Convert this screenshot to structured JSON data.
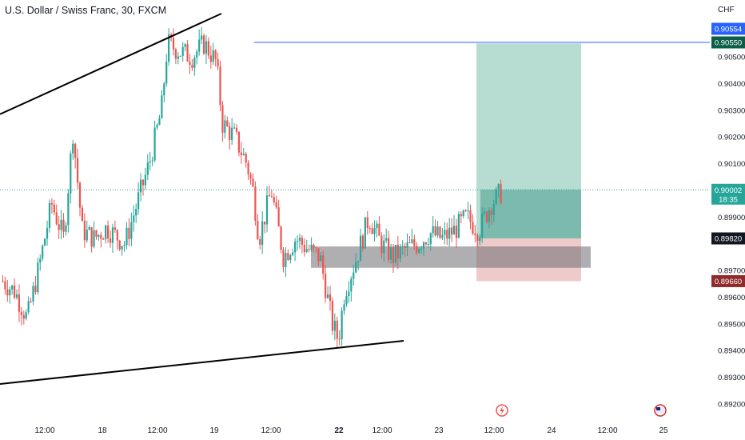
{
  "header": {
    "title": "U.S. Dollar / Swiss Franc, 30, FXCM",
    "currency": "CHF"
  },
  "chart_data": {
    "type": "candlestick",
    "symbol": "USDCHF",
    "timeframe": "30",
    "broker": "FXCM",
    "ylim": [
      0.8916,
      0.9065
    ],
    "y_ticks": [
      "0.90500",
      "0.90400",
      "0.90300",
      "0.90200",
      "0.90100",
      "0.89900",
      "0.89700",
      "0.89600",
      "0.89500",
      "0.89400",
      "0.89300",
      "0.89200"
    ],
    "x_ticks": [
      {
        "label": "12:00",
        "bold": false
      },
      {
        "label": "18",
        "bold": false
      },
      {
        "label": "12:00",
        "bold": false
      },
      {
        "label": "19",
        "bold": false
      },
      {
        "label": "12:00",
        "bold": false
      },
      {
        "label": "22",
        "bold": true
      },
      {
        "label": "12:00",
        "bold": false
      },
      {
        "label": "23",
        "bold": false
      },
      {
        "label": "12:00",
        "bold": false
      },
      {
        "label": "24",
        "bold": false
      },
      {
        "label": "12:00",
        "bold": false
      },
      {
        "label": "25",
        "bold": false
      }
    ],
    "price_badges": [
      {
        "value": "0.90554",
        "color": "#2962ff"
      },
      {
        "value": "0.90550",
        "color": "#0b5e47"
      },
      {
        "value": "0.90002",
        "sub": "18:35",
        "color": "#26a69a"
      },
      {
        "value": "0.89820",
        "color": "#131722"
      },
      {
        "value": "0.89660",
        "color": "#8e2a2a"
      }
    ],
    "current_price": 0.90002,
    "horizontal_line": 0.90554,
    "position": {
      "type": "long",
      "entry": 0.8982,
      "target": 0.9055,
      "stop": 0.8966
    },
    "support_zone": [
      0.8971,
      0.8979
    ],
    "trendlines": [
      {
        "from": [
          "start",
          0.90285
        ],
        "to": [
          "18 ~17:00",
          0.9064
        ]
      },
      {
        "from": [
          "start",
          0.89273
        ],
        "to": [
          "22 ~14:30",
          0.89435
        ]
      }
    ],
    "up_color": "#26a69a",
    "down_color": "#ef5350",
    "price_path": [
      [
        0,
        0.8966
      ],
      [
        0.02,
        0.8962
      ],
      [
        0.04,
        0.8952
      ],
      [
        0.06,
        0.8972
      ],
      [
        0.08,
        0.8995
      ],
      [
        0.1,
        0.8982
      ],
      [
        0.115,
        0.9022
      ],
      [
        0.13,
        0.8985
      ],
      [
        0.15,
        0.8982
      ],
      [
        0.17,
        0.8986
      ],
      [
        0.2,
        0.898
      ],
      [
        0.22,
        0.8995
      ],
      [
        0.24,
        0.901
      ],
      [
        0.26,
        0.903
      ],
      [
        0.27,
        0.9055
      ],
      [
        0.29,
        0.9052
      ],
      [
        0.31,
        0.905
      ],
      [
        0.33,
        0.9055
      ],
      [
        0.35,
        0.9048
      ],
      [
        0.36,
        0.9025
      ],
      [
        0.38,
        0.902
      ],
      [
        0.4,
        0.901
      ],
      [
        0.41,
        0.9
      ],
      [
        0.42,
        0.8982
      ],
      [
        0.44,
        0.9
      ],
      [
        0.46,
        0.8975
      ],
      [
        0.48,
        0.8982
      ],
      [
        0.5,
        0.8978
      ],
      [
        0.52,
        0.8975
      ],
      [
        0.54,
        0.895
      ],
      [
        0.55,
        0.8944
      ],
      [
        0.56,
        0.8962
      ],
      [
        0.58,
        0.8975
      ],
      [
        0.6,
        0.899
      ],
      [
        0.62,
        0.898
      ],
      [
        0.64,
        0.8975
      ],
      [
        0.66,
        0.8978
      ],
      [
        0.68,
        0.898
      ],
      [
        0.7,
        0.8984
      ],
      [
        0.72,
        0.8982
      ],
      [
        0.74,
        0.8985
      ],
      [
        0.76,
        0.899
      ],
      [
        0.78,
        0.8985
      ],
      [
        0.8,
        0.8995
      ],
      [
        0.82,
        0.9
      ]
    ]
  }
}
